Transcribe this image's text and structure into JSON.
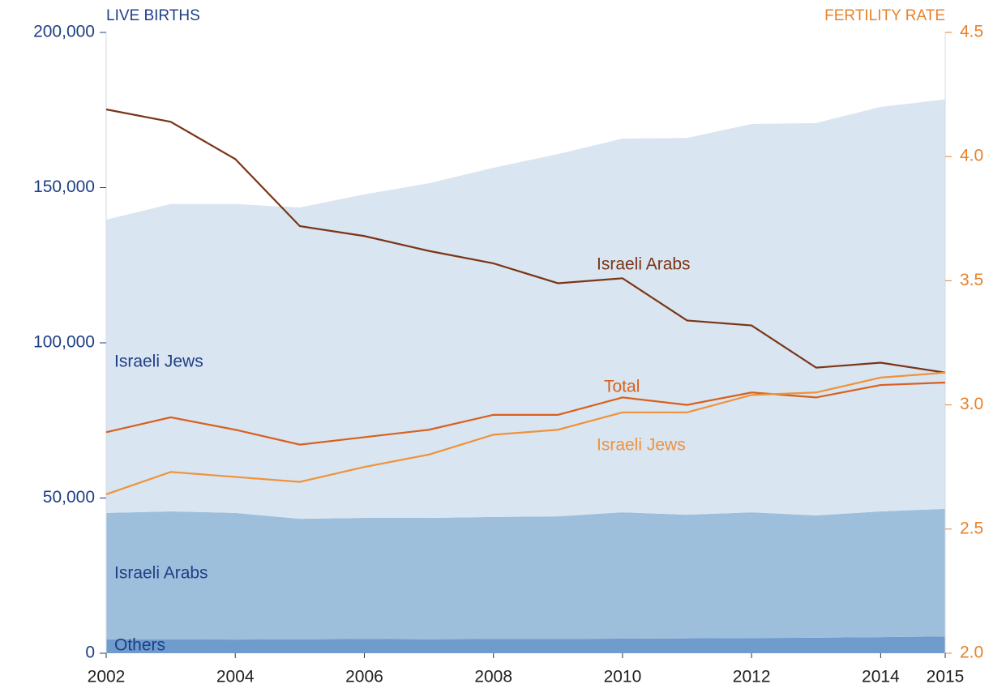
{
  "chart_data": {
    "type": "area",
    "y_title": "LIVE BIRTHS",
    "y2_title": "FERTILITY RATE",
    "x": [
      2002,
      2003,
      2004,
      2005,
      2006,
      2007,
      2008,
      2009,
      2010,
      2011,
      2012,
      2013,
      2014,
      2015
    ],
    "xlim": [
      2002,
      2015
    ],
    "xticks": [
      2002,
      2004,
      2006,
      2008,
      2010,
      2012,
      2014,
      2015
    ],
    "ylim": [
      0,
      200000
    ],
    "yticks": [
      {
        "value": 0,
        "label": "0"
      },
      {
        "value": 50000,
        "label": "50,000"
      },
      {
        "value": 100000,
        "label": "100,000"
      },
      {
        "value": 150000,
        "label": "150,000"
      },
      {
        "value": 200000,
        "label": "200,000"
      }
    ],
    "y2lim": [
      2.0,
      4.5
    ],
    "y2ticks": [
      {
        "value": 2.0,
        "label": "2.0"
      },
      2.5,
      {
        "value": 3.0,
        "label": "3.0"
      },
      3.5,
      {
        "value": 4.0,
        "label": "4.0"
      },
      4.5
    ],
    "series": [
      {
        "name": "Others",
        "type": "area",
        "color": "#6f9ccc",
        "values": [
          4500,
          4500,
          4400,
          4500,
          4600,
          4500,
          4600,
          4600,
          4700,
          4800,
          4900,
          5000,
          5200,
          5400
        ]
      },
      {
        "name": "Israeli Arabs",
        "type": "area",
        "color": "#9dbfdc",
        "values": [
          40700,
          41200,
          40800,
          38800,
          39000,
          39100,
          39300,
          39500,
          40700,
          39800,
          40500,
          39400,
          40500,
          41100
        ]
      },
      {
        "name": "Israeli Jews",
        "type": "area",
        "color": "#d9e5f1",
        "values": [
          94500,
          99000,
          99500,
          100300,
          104200,
          107800,
          112500,
          116700,
          120400,
          121400,
          125100,
          126400,
          130300,
          131900
        ]
      },
      {
        "name": "Israeli Arabs",
        "type": "line",
        "axis": "y2",
        "color": "#7b3516",
        "values": [
          4.19,
          4.14,
          3.99,
          3.72,
          3.68,
          3.62,
          3.57,
          3.49,
          3.51,
          3.34,
          3.32,
          3.15,
          3.17,
          3.13
        ]
      },
      {
        "name": "Total",
        "type": "line",
        "axis": "y2",
        "color": "#d9601c",
        "values": [
          2.89,
          2.95,
          2.9,
          2.84,
          2.87,
          2.9,
          2.96,
          2.96,
          3.03,
          3.0,
          3.05,
          3.03,
          3.08,
          3.09
        ]
      },
      {
        "name": "Israeli Jews",
        "type": "line",
        "axis": "y2",
        "color": "#f0923a",
        "values": [
          2.64,
          2.73,
          2.71,
          2.69,
          2.75,
          2.8,
          2.88,
          2.9,
          2.97,
          2.97,
          3.04,
          3.05,
          3.11,
          3.13
        ]
      }
    ]
  }
}
